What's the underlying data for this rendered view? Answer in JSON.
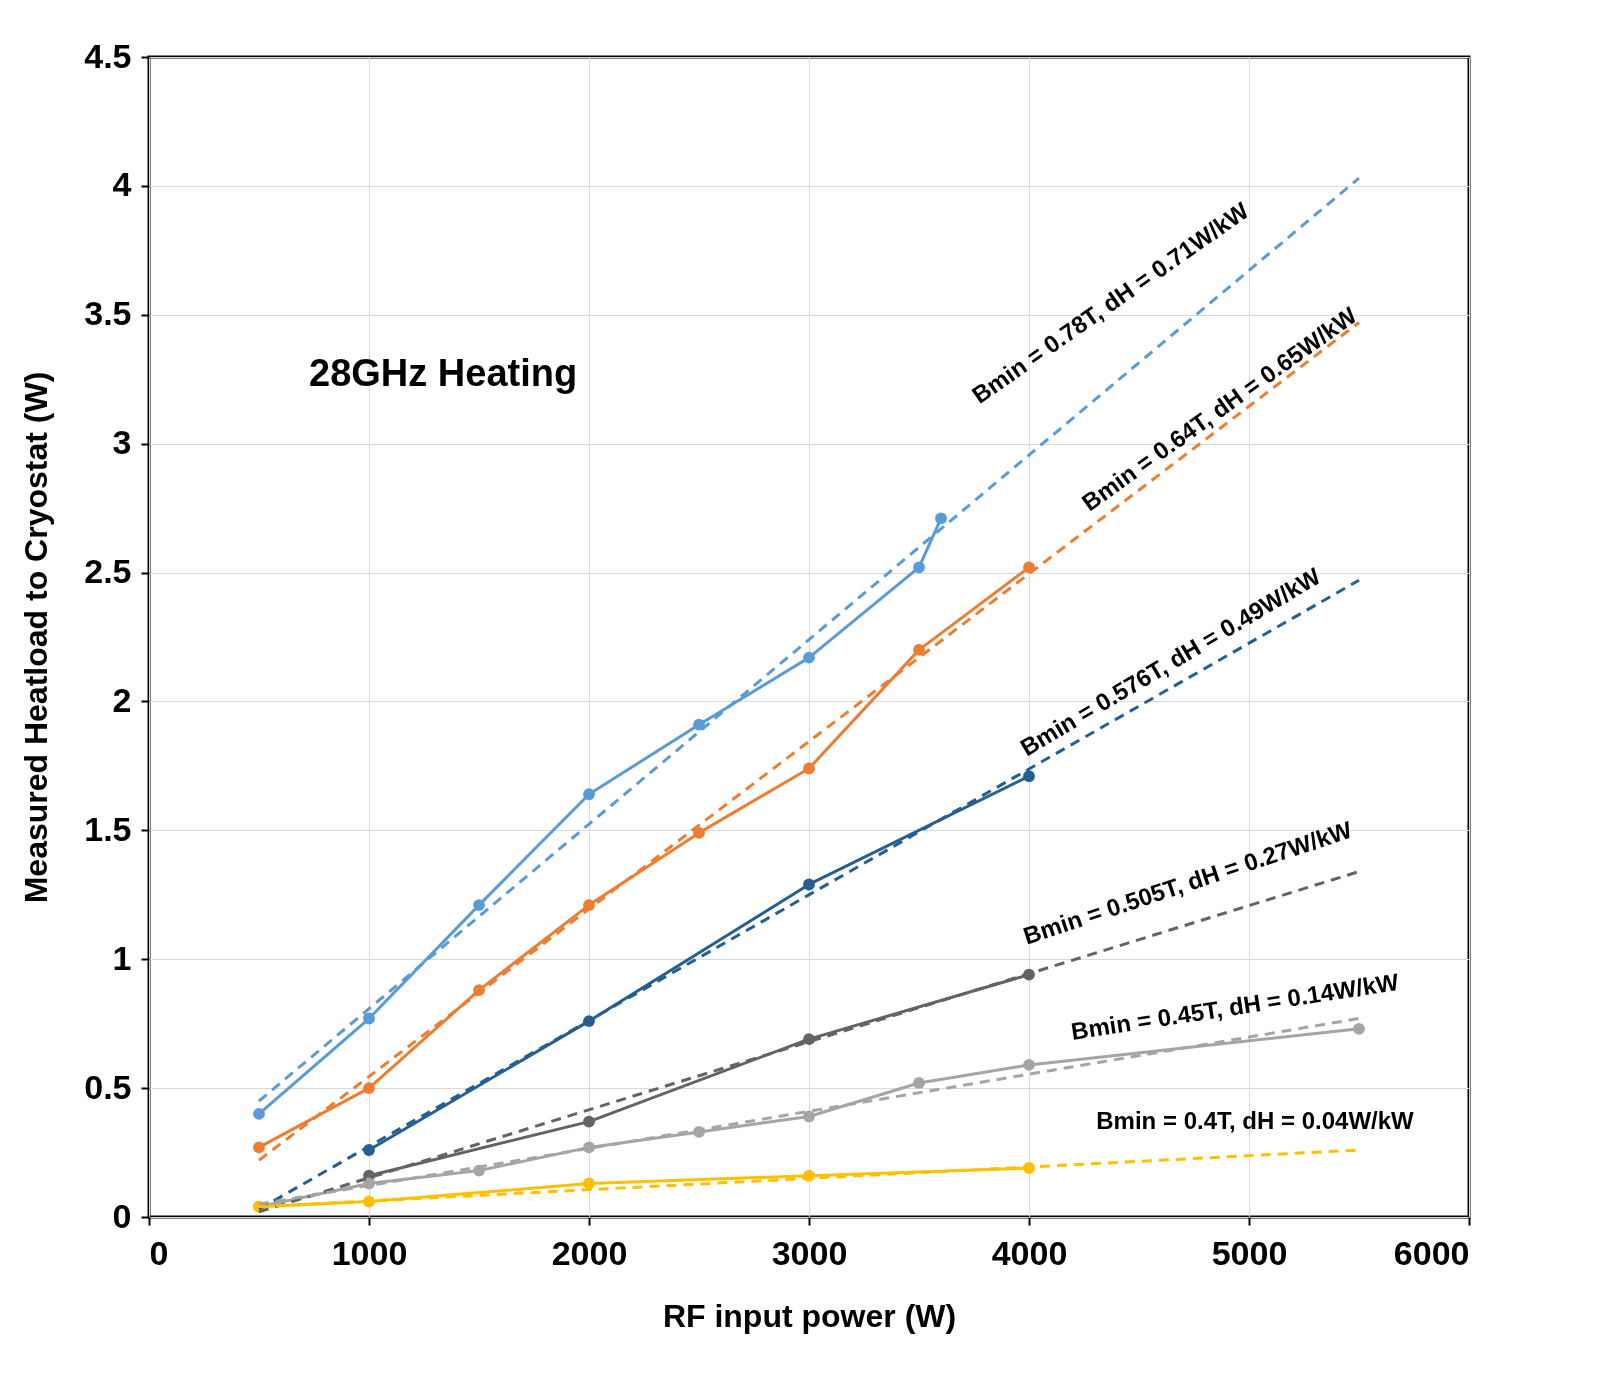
{
  "chart_data": {
    "type": "line",
    "xlabel": "RF input power (W)",
    "ylabel": "Measured Heatload to Cryostat (W)",
    "xlim": [
      0,
      6000
    ],
    "ylim": [
      0,
      4.5
    ],
    "xticks": [
      0,
      1000,
      2000,
      3000,
      4000,
      5000,
      6000
    ],
    "yticks": [
      0,
      0.5,
      1,
      1.5,
      2,
      2.5,
      3,
      3.5,
      4,
      4.5
    ],
    "grid": true,
    "annotations": [
      "28GHz Heating",
      "Bmin = 0.78T, dH = 0.71W/kW",
      "Bmin = 0.64T, dH = 0.65W/kW",
      "Bmin = 0.576T, dH = 0.49W/kW",
      "Bmin = 0.505T, dH = 0.27W/kW",
      "Bmin = 0.45T, dH = 0.14W/kW",
      "Bmin = 0.4T, dH = 0.04W/kW"
    ],
    "series": [
      {
        "color": "#5b9bd5",
        "marker": "circle",
        "line_style": "solid",
        "x": [
          500,
          1000,
          1500,
          2000,
          2500,
          3000,
          3500,
          3600
        ],
        "values": [
          0.4,
          0.77,
          1.21,
          1.64,
          1.91,
          2.17,
          2.52,
          2.71
        ]
      },
      {
        "color": "#ed7d31",
        "marker": "circle",
        "line_style": "solid",
        "x": [
          500,
          1000,
          1500,
          2000,
          2500,
          3000,
          3500,
          4000
        ],
        "values": [
          0.27,
          0.5,
          0.88,
          1.21,
          1.49,
          1.74,
          2.2,
          2.52
        ]
      },
      {
        "color": "#255e91",
        "marker": "circle",
        "line_style": "solid",
        "x": [
          1000,
          2000,
          3000,
          4000
        ],
        "values": [
          0.26,
          0.76,
          1.29,
          1.71
        ]
      },
      {
        "color": "#636363",
        "marker": "circle",
        "line_style": "solid",
        "x": [
          1000,
          2000,
          3000,
          4000
        ],
        "values": [
          0.16,
          0.37,
          0.69,
          0.94
        ]
      },
      {
        "color": "#a5a5a5",
        "marker": "circle",
        "line_style": "solid",
        "x": [
          500,
          1000,
          1500,
          2000,
          2500,
          3000,
          3500,
          4000,
          5500
        ],
        "values": [
          0.04,
          0.13,
          0.18,
          0.27,
          0.33,
          0.39,
          0.52,
          0.59,
          0.73
        ]
      },
      {
        "color": "#ffc000",
        "marker": "circle",
        "line_style": "solid",
        "x": [
          500,
          1000,
          2000,
          3000,
          4000
        ],
        "values": [
          0.04,
          0.06,
          0.13,
          0.16,
          0.19
        ]
      },
      {
        "color": "#5b9bd5",
        "marker": "none",
        "line_style": "dashed",
        "x": [
          500,
          5500
        ],
        "values": [
          0.45,
          4.03
        ]
      },
      {
        "color": "#ed7d31",
        "marker": "none",
        "line_style": "dashed",
        "x": [
          500,
          5500
        ],
        "values": [
          0.22,
          3.47
        ]
      },
      {
        "color": "#255e91",
        "marker": "none",
        "line_style": "dashed",
        "x": [
          500,
          5500
        ],
        "values": [
          0.03,
          2.47
        ]
      },
      {
        "color": "#636363",
        "marker": "none",
        "line_style": "dashed",
        "x": [
          500,
          5500
        ],
        "values": [
          0.02,
          1.34
        ]
      },
      {
        "color": "#a5a5a5",
        "marker": "none",
        "line_style": "dashed",
        "x": [
          500,
          5500
        ],
        "values": [
          0.05,
          0.77
        ]
      },
      {
        "color": "#ffc000",
        "marker": "none",
        "line_style": "dashed",
        "x": [
          500,
          5500
        ],
        "values": [
          0.04,
          0.26
        ]
      }
    ]
  }
}
